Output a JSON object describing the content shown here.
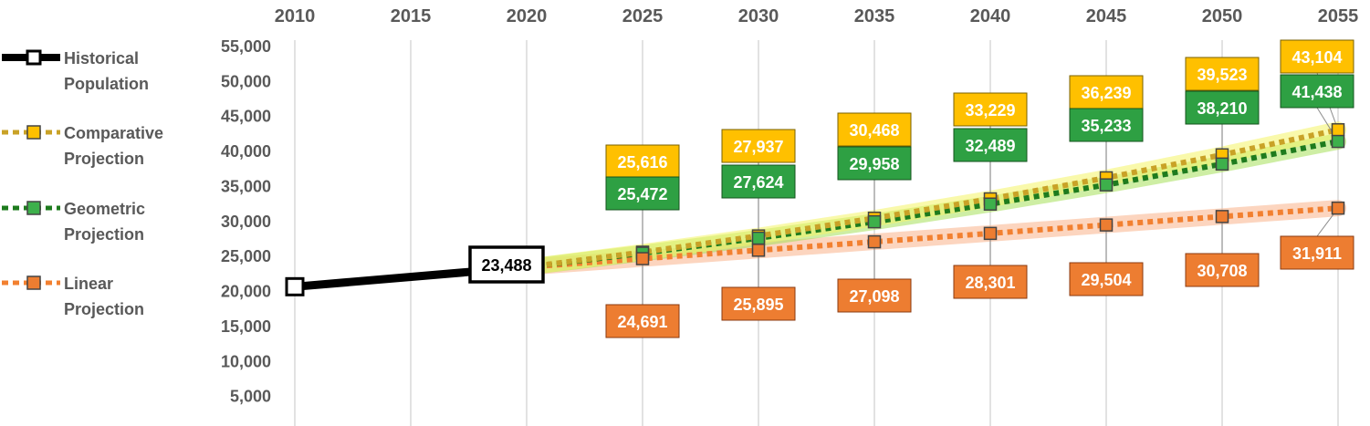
{
  "chart_data": {
    "type": "line",
    "x": [
      2010,
      2015,
      2020,
      2025,
      2030,
      2035,
      2040,
      2045,
      2050,
      2055
    ],
    "x_ticks": [
      "2010",
      "2015",
      "2020",
      "2025",
      "2030",
      "2035",
      "2040",
      "2045",
      "2050",
      "2055"
    ],
    "xlim": [
      2010,
      2055
    ],
    "ylim": [
      0,
      55000
    ],
    "y_ticks": [
      "5,000",
      "10,000",
      "15,000",
      "20,000",
      "25,000",
      "30,000",
      "35,000",
      "40,000",
      "45,000",
      "50,000",
      "55,000"
    ],
    "x_axis_position": "top",
    "grid": "vertical",
    "legend_position": "left",
    "series": [
      {
        "name": "Historical Population",
        "legend_lines": [
          "Historical",
          "Population"
        ],
        "style": "solid",
        "color": "#000000",
        "marker_fill": "#ffffff",
        "points": [
          {
            "x": 2010,
            "y": 20681
          },
          {
            "x": 2020,
            "y": 23488,
            "label": "23,488"
          }
        ]
      },
      {
        "name": "Comparative Projection",
        "legend_lines": [
          "Comparative",
          "Projection"
        ],
        "style": "dotted",
        "color": "#C9A227",
        "marker_fill": "#FFC000",
        "label_bg": "#FFC000",
        "glow": "#F4F466",
        "points": [
          {
            "x": 2020,
            "y": 23488
          },
          {
            "x": 2025,
            "y": 25616,
            "label": "25,616"
          },
          {
            "x": 2030,
            "y": 27937,
            "label": "27,937"
          },
          {
            "x": 2035,
            "y": 30468,
            "label": "30,468"
          },
          {
            "x": 2040,
            "y": 33229,
            "label": "33,229"
          },
          {
            "x": 2045,
            "y": 36239,
            "label": "36,239"
          },
          {
            "x": 2050,
            "y": 39523,
            "label": "39,523"
          },
          {
            "x": 2055,
            "y": 43104,
            "label": "43,104"
          }
        ]
      },
      {
        "name": "Geometric Projection",
        "legend_lines": [
          "Geometric",
          "Projection"
        ],
        "style": "dotted",
        "color": "#1E7B1E",
        "marker_fill": "#3DB04B",
        "label_bg": "#2EA043",
        "glow": "#A6E05A",
        "points": [
          {
            "x": 2020,
            "y": 23488
          },
          {
            "x": 2025,
            "y": 25472,
            "label": "25,472"
          },
          {
            "x": 2030,
            "y": 27624,
            "label": "27,624"
          },
          {
            "x": 2035,
            "y": 29958,
            "label": "29,958"
          },
          {
            "x": 2040,
            "y": 32489,
            "label": "32,489"
          },
          {
            "x": 2045,
            "y": 35233,
            "label": "35,233"
          },
          {
            "x": 2050,
            "y": 38210,
            "label": "38,210"
          },
          {
            "x": 2055,
            "y": 41438,
            "label": "41,438"
          }
        ]
      },
      {
        "name": "Linear Projection",
        "legend_lines": [
          "Linear",
          "Projection"
        ],
        "style": "dotted",
        "color": "#F28030",
        "marker_fill": "#ED7D31",
        "label_bg": "#ED7D31",
        "glow": "#F9B38A",
        "points": [
          {
            "x": 2020,
            "y": 23488
          },
          {
            "x": 2025,
            "y": 24691,
            "label": "24,691"
          },
          {
            "x": 2030,
            "y": 25895,
            "label": "25,895"
          },
          {
            "x": 2035,
            "y": 27098,
            "label": "27,098"
          },
          {
            "x": 2040,
            "y": 28301,
            "label": "28,301"
          },
          {
            "x": 2045,
            "y": 29504,
            "label": "29,504"
          },
          {
            "x": 2050,
            "y": 30708,
            "label": "30,708"
          },
          {
            "x": 2055,
            "y": 31911,
            "label": "31,911"
          }
        ]
      }
    ]
  }
}
